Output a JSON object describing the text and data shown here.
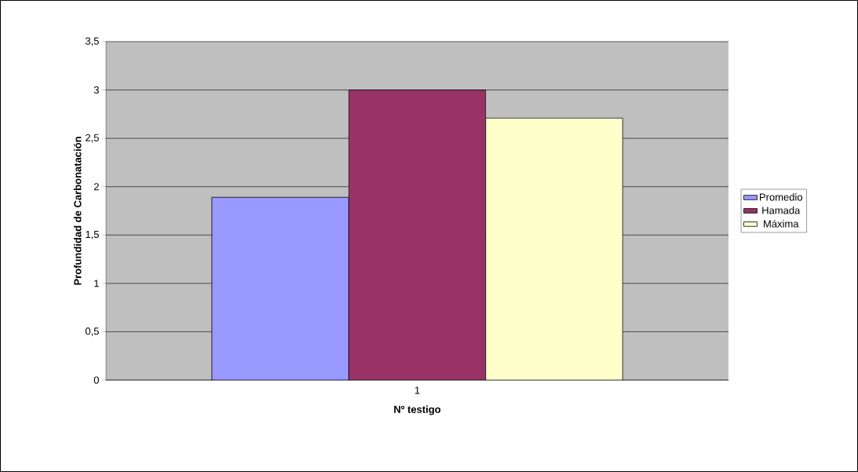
{
  "chart_data": {
    "type": "bar",
    "xlabel": "Nº testigo",
    "ylabel": "Profundidad de Carbonatación",
    "categories": [
      "1"
    ],
    "series": [
      {
        "name": "Promedio",
        "color": "#9999ff",
        "values": [
          1.89
        ]
      },
      {
        "name": "Hamada",
        "color": "#993366",
        "values": [
          3.0
        ]
      },
      {
        "name": "Máxima",
        "color": "#ffffcc",
        "values": [
          2.71
        ]
      }
    ],
    "ylim": [
      0,
      3.5
    ],
    "yticks": [
      0,
      {
        "value": 0.5,
        "label": "0,5"
      },
      1,
      {
        "value": 1.5,
        "label": "1,5"
      },
      2,
      {
        "value": 2.5,
        "label": "2,5"
      },
      3,
      {
        "value": 3.5,
        "label": "3,5"
      }
    ],
    "grid": "y",
    "legend": "right"
  }
}
